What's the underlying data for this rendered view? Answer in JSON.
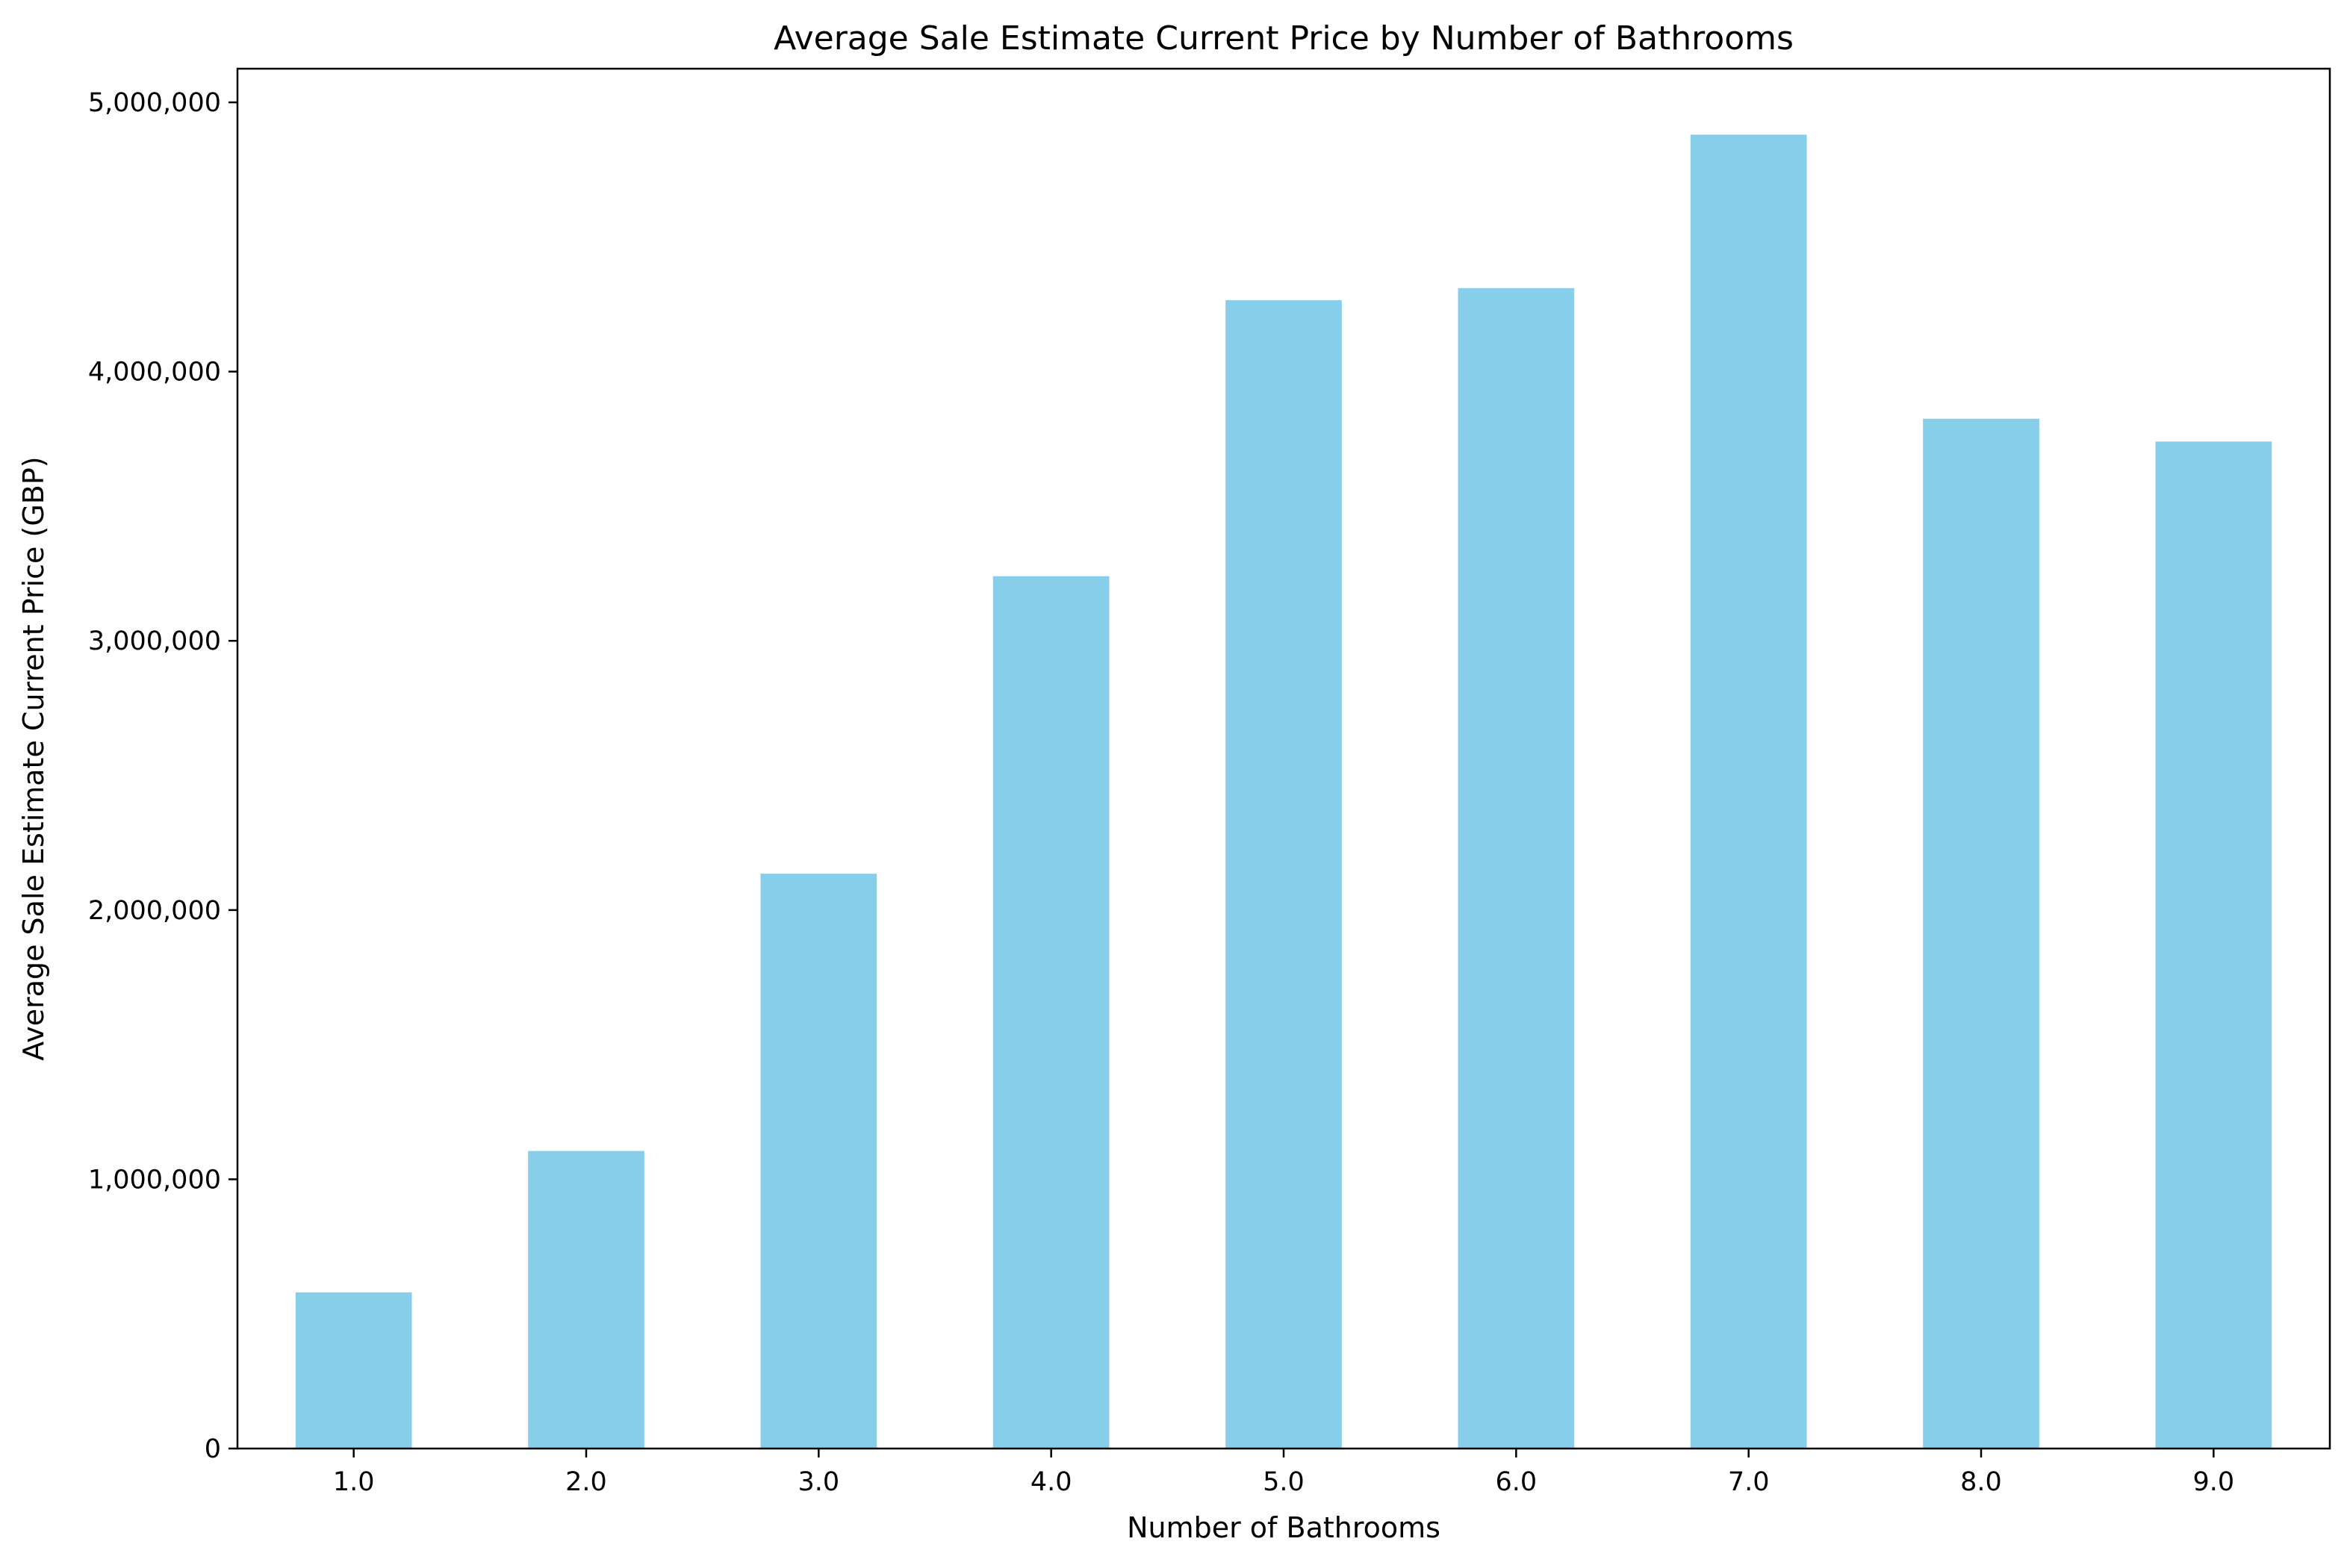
{
  "chart_data": {
    "type": "bar",
    "title": "Average Sale Estimate Current Price by Number of Bathrooms",
    "xlabel": "Number of Bathrooms",
    "ylabel": "Average Sale Estimate Current Price (GBP)",
    "categories": [
      "1.0",
      "2.0",
      "3.0",
      "4.0",
      "5.0",
      "6.0",
      "7.0",
      "8.0",
      "9.0"
    ],
    "values": [
      580000,
      1105000,
      2135000,
      3240000,
      4265000,
      4310000,
      4880000,
      3825000,
      3740000
    ],
    "ylim": [
      0,
      5125000
    ],
    "yticks": [
      0,
      1000000,
      2000000,
      3000000,
      4000000,
      5000000
    ],
    "ytick_labels": [
      "0",
      "1,000,000",
      "2,000,000",
      "3,000,000",
      "4,000,000",
      "5,000,000"
    ],
    "bar_color": "#87ceeb",
    "grid": false,
    "legend": "none"
  }
}
